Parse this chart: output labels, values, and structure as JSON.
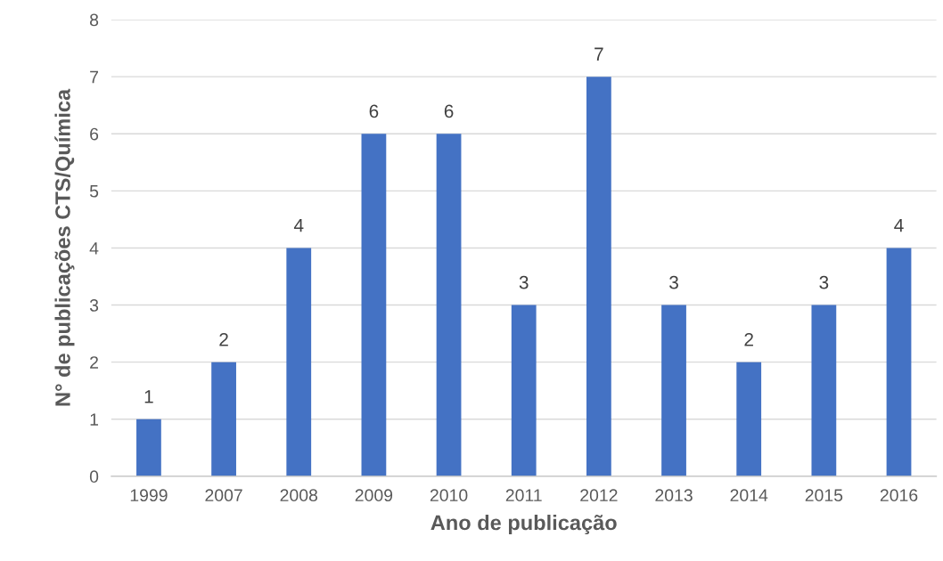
{
  "chart_data": {
    "type": "bar",
    "xlabel": "Ano de publicação",
    "ylabel": "N° de publicações CTS/Química",
    "categories": [
      "1999",
      "2007",
      "2008",
      "2009",
      "2010",
      "2011",
      "2012",
      "2013",
      "2014",
      "2015",
      "2016"
    ],
    "values": [
      1,
      2,
      4,
      6,
      6,
      3,
      7,
      3,
      2,
      3,
      4
    ],
    "color": "#4472c4",
    "ylim": [
      0,
      8
    ],
    "yticks": [
      0,
      1,
      2,
      3,
      4,
      5,
      6,
      7,
      8
    ],
    "grid": "y",
    "data_labels": true,
    "legend": false
  }
}
